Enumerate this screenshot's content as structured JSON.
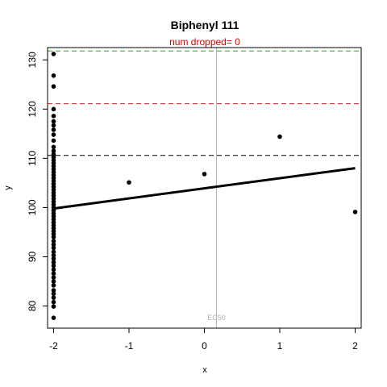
{
  "chart_data": {
    "type": "scatter",
    "title": "Biphenyl 111",
    "subtitle": "num dropped= 0",
    "xlabel": "x",
    "ylabel": "y",
    "xlim": [
      -2.08,
      2.08
    ],
    "ylim": [
      75.5,
      132.5
    ],
    "x_ticks": [
      -2,
      -1,
      0,
      1,
      2
    ],
    "y_ticks": [
      80,
      90,
      100,
      110,
      120,
      130
    ],
    "grid": false,
    "points": [
      {
        "x": -2,
        "y": 131.2
      },
      {
        "x": -2,
        "y": 126.8
      },
      {
        "x": -2,
        "y": 124.6
      },
      {
        "x": -2,
        "y": 120.0
      },
      {
        "x": -2,
        "y": 118.6
      },
      {
        "x": -2,
        "y": 117.5
      },
      {
        "x": -2,
        "y": 116.7
      },
      {
        "x": -2,
        "y": 115.8
      },
      {
        "x": -2,
        "y": 114.8
      },
      {
        "x": -2,
        "y": 113.6
      },
      {
        "x": -2,
        "y": 112.3
      },
      {
        "x": -2,
        "y": 111.5
      },
      {
        "x": -2,
        "y": 110.8
      },
      {
        "x": -2,
        "y": 110.2
      },
      {
        "x": -2,
        "y": 109.6
      },
      {
        "x": -2,
        "y": 109.0
      },
      {
        "x": -2,
        "y": 108.4
      },
      {
        "x": -2,
        "y": 107.8
      },
      {
        "x": -2,
        "y": 107.2
      },
      {
        "x": -2,
        "y": 106.6
      },
      {
        "x": -2,
        "y": 106.0
      },
      {
        "x": -2,
        "y": 105.4
      },
      {
        "x": -2,
        "y": 104.8
      },
      {
        "x": -2,
        "y": 104.2
      },
      {
        "x": -2,
        "y": 103.6
      },
      {
        "x": -2,
        "y": 103.0
      },
      {
        "x": -2,
        "y": 102.4
      },
      {
        "x": -2,
        "y": 101.8
      },
      {
        "x": -2,
        "y": 101.2
      },
      {
        "x": -2,
        "y": 100.6
      },
      {
        "x": -2,
        "y": 100.0
      },
      {
        "x": -2,
        "y": 99.4
      },
      {
        "x": -2,
        "y": 98.8
      },
      {
        "x": -2,
        "y": 98.2
      },
      {
        "x": -2,
        "y": 97.6
      },
      {
        "x": -2,
        "y": 97.0
      },
      {
        "x": -2,
        "y": 96.4
      },
      {
        "x": -2,
        "y": 95.8
      },
      {
        "x": -2,
        "y": 95.2
      },
      {
        "x": -2,
        "y": 94.6
      },
      {
        "x": -2,
        "y": 94.0
      },
      {
        "x": -2,
        "y": 93.2
      },
      {
        "x": -2,
        "y": 92.5
      },
      {
        "x": -2,
        "y": 91.8
      },
      {
        "x": -2,
        "y": 91.0
      },
      {
        "x": -2,
        "y": 90.3
      },
      {
        "x": -2,
        "y": 89.6
      },
      {
        "x": -2,
        "y": 88.9
      },
      {
        "x": -2,
        "y": 88.2
      },
      {
        "x": -2,
        "y": 87.4
      },
      {
        "x": -2,
        "y": 86.6
      },
      {
        "x": -2,
        "y": 85.8
      },
      {
        "x": -2,
        "y": 85.0
      },
      {
        "x": -2,
        "y": 84.2
      },
      {
        "x": -2,
        "y": 83.2
      },
      {
        "x": -2,
        "y": 82.5
      },
      {
        "x": -2,
        "y": 81.7
      },
      {
        "x": -2,
        "y": 80.8
      },
      {
        "x": -2,
        "y": 79.9
      },
      {
        "x": -2,
        "y": 77.6
      },
      {
        "x": -1,
        "y": 105.1
      },
      {
        "x": 0,
        "y": 106.8
      },
      {
        "x": 1,
        "y": 114.4
      },
      {
        "x": 2,
        "y": 99.1
      }
    ],
    "fit_line": {
      "x": [
        -2,
        2
      ],
      "y": [
        99.8,
        108.0
      ],
      "color": "#000000"
    },
    "reference_lines": [
      {
        "y": 131.8,
        "color": "#22aa22",
        "style": "dashed"
      },
      {
        "y": 121.1,
        "color": "#dd2222",
        "style": "dashed"
      },
      {
        "y": 110.6,
        "color": "#000000",
        "style": "dashed"
      }
    ],
    "ec50": {
      "x": 0.16,
      "label": "EC50",
      "color": "#b0b0b0"
    }
  }
}
